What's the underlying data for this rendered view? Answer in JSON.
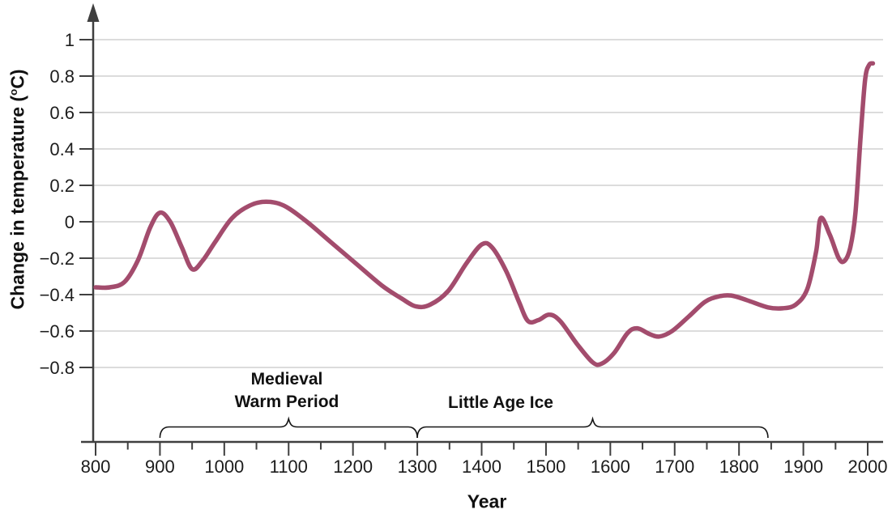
{
  "figure": {
    "y_axis_label_prefix": "Change in temperature (",
    "y_axis_label_degree": "o",
    "y_axis_label_suffix": "C)",
    "x_axis_label": "Year"
  },
  "colors": {
    "curve": "#a34c6d",
    "axis": "#3f3f3f",
    "gridline": "#c7c7c7",
    "tick_text": "#1c1c1c",
    "brace": "#151515",
    "background": "#ffffff"
  },
  "chart_data": {
    "type": "line",
    "title": "",
    "xlabel": "Year",
    "ylabel": "Change in temperature (°C)",
    "xlim": [
      800,
      2008
    ],
    "ylim": [
      -1.2,
      1.15
    ],
    "grid": "horizontal",
    "legend": "none",
    "x_major_ticks": [
      800,
      900,
      1000,
      1100,
      1200,
      1300,
      1400,
      1500,
      1600,
      1700,
      1800,
      1900,
      2000
    ],
    "x_minor_ticks": [
      850,
      950,
      1050,
      1150,
      1250,
      1350,
      1450,
      1550,
      1650,
      1750,
      1850,
      1950
    ],
    "y_ticks": [
      1,
      0.8,
      0.6,
      0.4,
      0.2,
      0,
      -0.2,
      -0.4,
      -0.6,
      -0.8
    ],
    "y_tick_labels": [
      "1",
      "0.8",
      "0.6",
      "0.4",
      "0.2",
      "0",
      "−0.2",
      "−0.4",
      "−0.6",
      "−0.8"
    ],
    "series": [
      {
        "name": "temperature-anomaly",
        "color": "#a34c6d",
        "points": [
          [
            800,
            -0.36
          ],
          [
            822,
            -0.36
          ],
          [
            845,
            -0.33
          ],
          [
            866,
            -0.21
          ],
          [
            885,
            -0.03
          ],
          [
            900,
            0.05
          ],
          [
            916,
            0.0
          ],
          [
            934,
            -0.14
          ],
          [
            950,
            -0.26
          ],
          [
            966,
            -0.215
          ],
          [
            986,
            -0.11
          ],
          [
            1012,
            0.02
          ],
          [
            1040,
            0.09
          ],
          [
            1065,
            0.11
          ],
          [
            1092,
            0.09
          ],
          [
            1125,
            0.01
          ],
          [
            1165,
            -0.11
          ],
          [
            1205,
            -0.23
          ],
          [
            1245,
            -0.35
          ],
          [
            1275,
            -0.42
          ],
          [
            1298,
            -0.465
          ],
          [
            1320,
            -0.455
          ],
          [
            1348,
            -0.38
          ],
          [
            1376,
            -0.23
          ],
          [
            1400,
            -0.125
          ],
          [
            1416,
            -0.14
          ],
          [
            1438,
            -0.27
          ],
          [
            1458,
            -0.44
          ],
          [
            1472,
            -0.545
          ],
          [
            1488,
            -0.54
          ],
          [
            1505,
            -0.51
          ],
          [
            1522,
            -0.545
          ],
          [
            1548,
            -0.67
          ],
          [
            1572,
            -0.77
          ],
          [
            1586,
            -0.78
          ],
          [
            1606,
            -0.72
          ],
          [
            1627,
            -0.61
          ],
          [
            1642,
            -0.585
          ],
          [
            1660,
            -0.615
          ],
          [
            1676,
            -0.63
          ],
          [
            1696,
            -0.6
          ],
          [
            1722,
            -0.52
          ],
          [
            1747,
            -0.44
          ],
          [
            1768,
            -0.41
          ],
          [
            1788,
            -0.405
          ],
          [
            1812,
            -0.43
          ],
          [
            1845,
            -0.47
          ],
          [
            1868,
            -0.475
          ],
          [
            1888,
            -0.455
          ],
          [
            1906,
            -0.37
          ],
          [
            1920,
            -0.16
          ],
          [
            1927,
            0.02
          ],
          [
            1941,
            -0.07
          ],
          [
            1955,
            -0.2
          ],
          [
            1964,
            -0.215
          ],
          [
            1973,
            -0.14
          ],
          [
            1981,
            0.05
          ],
          [
            1989,
            0.47
          ],
          [
            1996,
            0.78
          ],
          [
            2002,
            0.86
          ],
          [
            2008,
            0.87
          ]
        ]
      }
    ],
    "annotations": [
      {
        "label": "Medieval Warm Period",
        "line1": "Medieval",
        "line2": "Warm Period",
        "start_year": 900,
        "end_year": 1300
      },
      {
        "label": "Little Age Ice",
        "line1": "Little Age Ice",
        "line2": "",
        "start_year": 1300,
        "end_year": 1845
      }
    ]
  }
}
